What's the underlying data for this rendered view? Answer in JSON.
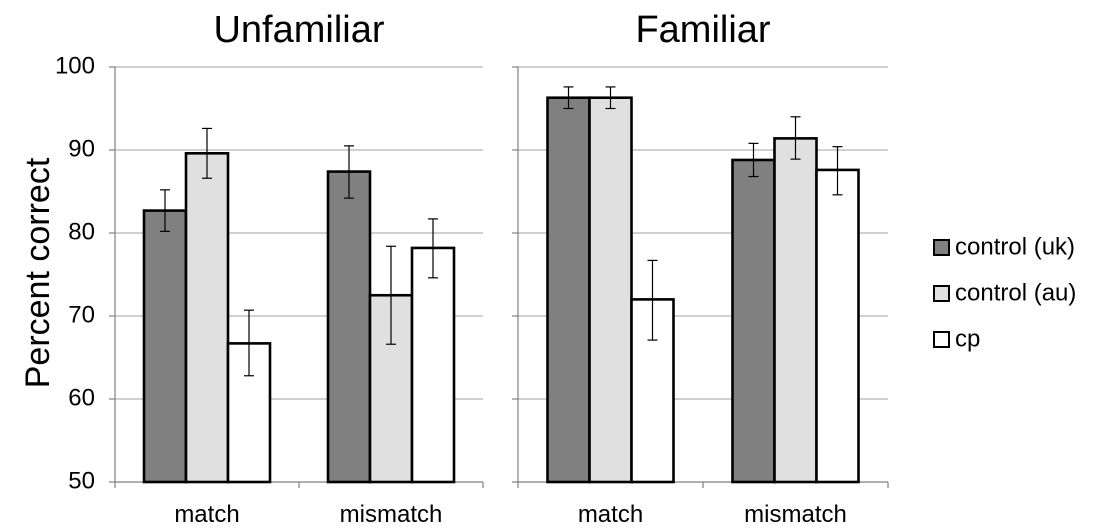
{
  "chart_data": {
    "type": "bar",
    "ylabel": "Percent correct",
    "ylim": [
      50,
      100
    ],
    "yticks": [
      50,
      60,
      70,
      80,
      90,
      100
    ],
    "grid": true,
    "legend_position": "right",
    "series_styles": [
      {
        "name": "control (uk)",
        "color": "#808080"
      },
      {
        "name": "control (au)",
        "color": "#e0e0e0"
      },
      {
        "name": "cp",
        "color": "#ffffff"
      }
    ],
    "panels": [
      {
        "title": "Unfamiliar",
        "categories": [
          "match",
          "mismatch"
        ],
        "series": [
          {
            "name": "control (uk)",
            "values": [
              82.7,
              87.4
            ],
            "err_low": [
              80.2,
              84.2
            ],
            "err_high": [
              85.2,
              90.5
            ]
          },
          {
            "name": "control (au)",
            "values": [
              89.6,
              72.5
            ],
            "err_low": [
              86.6,
              66.6
            ],
            "err_high": [
              92.6,
              78.4
            ]
          },
          {
            "name": "cp",
            "values": [
              66.7,
              78.2
            ],
            "err_low": [
              62.8,
              74.6
            ],
            "err_high": [
              70.7,
              81.7
            ]
          }
        ]
      },
      {
        "title": "Familiar",
        "categories": [
          "match",
          "mismatch"
        ],
        "series": [
          {
            "name": "control (uk)",
            "values": [
              96.3,
              88.8
            ],
            "err_low": [
              95.0,
              86.8
            ],
            "err_high": [
              97.6,
              90.8
            ]
          },
          {
            "name": "control (au)",
            "values": [
              96.3,
              91.4
            ],
            "err_low": [
              95.0,
              88.9
            ],
            "err_high": [
              97.6,
              94.0
            ]
          },
          {
            "name": "cp",
            "values": [
              72.0,
              87.6
            ],
            "err_low": [
              67.1,
              84.6
            ],
            "err_high": [
              76.7,
              90.4
            ]
          }
        ]
      }
    ]
  }
}
